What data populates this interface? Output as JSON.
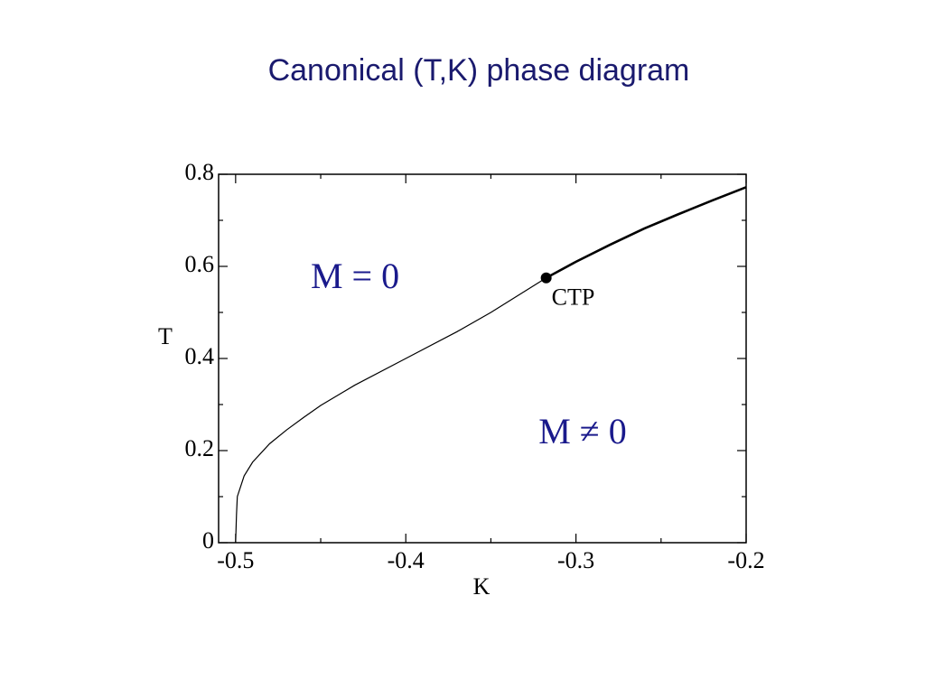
{
  "chart_data": {
    "type": "line",
    "title": "Canonical (T,K) phase diagram",
    "x_label": "K",
    "y_label": "T",
    "xlim": [
      -0.51,
      -0.2
    ],
    "ylim": [
      0,
      0.8
    ],
    "xticks": [
      -0.5,
      -0.4,
      -0.3,
      -0.2
    ],
    "yticks": [
      0,
      0.2,
      0.4,
      0.6,
      0.8
    ],
    "xminorticks": [
      -0.45,
      -0.35,
      -0.25
    ],
    "yminorticks": [
      0.1,
      0.3,
      0.5,
      0.7
    ],
    "series": [
      {
        "color": "#000000",
        "line_width": 1.2,
        "x": [
          -0.5,
          -0.4995,
          -0.499,
          -0.495,
          -0.49,
          -0.48,
          -0.47,
          -0.46,
          -0.45,
          -0.43,
          -0.4,
          -0.37,
          -0.35,
          -0.3175
        ],
        "values": [
          0,
          0.06,
          0.1,
          0.145,
          0.175,
          0.215,
          0.245,
          0.272,
          0.298,
          0.342,
          0.4,
          0.458,
          0.5,
          0.575
        ]
      },
      {
        "color": "#000000",
        "line_width": 2.6,
        "x": [
          -0.3175,
          -0.3,
          -0.28,
          -0.26,
          -0.24,
          -0.22,
          -0.2
        ],
        "values": [
          0.575,
          0.61,
          0.647,
          0.682,
          0.713,
          0.743,
          0.772
        ]
      }
    ],
    "point": {
      "label": "CTP",
      "x": -0.3175,
      "y": 0.575,
      "color": "#000000"
    },
    "annotations": [
      "M = 0",
      "M ≠ 0"
    ],
    "annotation_color": "#1a1a8c"
  }
}
